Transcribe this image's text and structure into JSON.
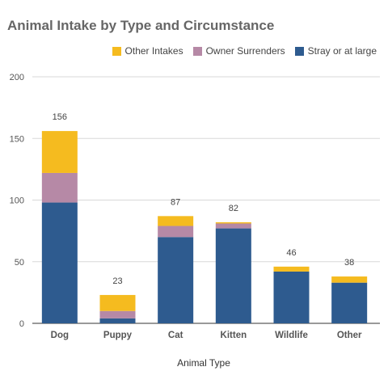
{
  "chart_data": {
    "type": "bar",
    "stacked": true,
    "title": "Animal Intake by Type and Circumstance",
    "xlabel": "Animal Type",
    "ylabel": "",
    "ylim": [
      0,
      200
    ],
    "yticks": [
      0,
      50,
      100,
      150,
      200
    ],
    "grid": true,
    "legend_position": "top-right",
    "categories": [
      "Dog",
      "Puppy",
      "Cat",
      "Kitten",
      "Wildlife",
      "Other"
    ],
    "series": [
      {
        "name": "Stray or at large",
        "color": "#2e5b8f",
        "values": [
          98,
          4,
          70,
          77,
          42,
          33
        ]
      },
      {
        "name": "Owner Surrenders",
        "color": "#b689a6",
        "values": [
          24,
          6,
          9,
          4,
          0,
          0
        ]
      },
      {
        "name": "Other Intakes",
        "color": "#f5bb1f",
        "values": [
          34,
          13,
          8,
          1,
          4,
          5
        ]
      }
    ],
    "totals": [
      156,
      23,
      87,
      82,
      46,
      38
    ]
  }
}
